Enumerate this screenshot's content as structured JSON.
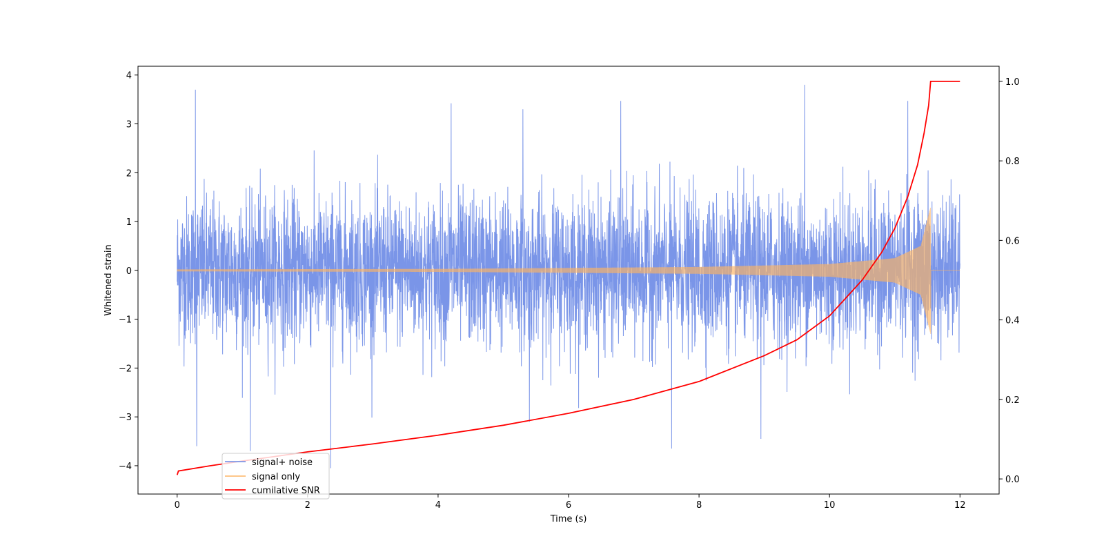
{
  "chart_data": {
    "type": "line",
    "title": "",
    "xlabel": "Time (s)",
    "ylabel": "Whitened strain",
    "y2label": "",
    "xlim": [
      -0.6,
      12.6
    ],
    "ylim": [
      -4.58,
      4.18
    ],
    "y2lim": [
      -0.038,
      1.038
    ],
    "xticks": [
      0,
      2,
      4,
      6,
      8,
      10,
      12
    ],
    "xtick_labels": [
      "0",
      "2",
      "4",
      "6",
      "8",
      "10",
      "12"
    ],
    "yticks": [
      4,
      3,
      2,
      1,
      0,
      -1,
      -2,
      -3,
      -4
    ],
    "ytick_labels": [
      "4",
      "3",
      "2",
      "1",
      "0",
      "−1",
      "−2",
      "−3",
      "−4"
    ],
    "y2ticks": [
      1.0,
      0.8,
      0.6,
      0.4,
      0.2,
      0.0
    ],
    "y2tick_labels": [
      "1.0",
      "0.8",
      "0.6",
      "0.4",
      "0.2",
      "0.0"
    ],
    "grid": false,
    "legend_position": "lower-left",
    "series": [
      {
        "name": "signal+ noise",
        "axis": "left",
        "color": "#6b8ae6",
        "description_range": [
          -4.1,
          3.8
        ],
        "x_range": [
          0,
          12
        ],
        "noise_std": 0.75,
        "spikes": [
          {
            "x": 0.28,
            "y": 3.7
          },
          {
            "x": 0.3,
            "y": -3.6
          },
          {
            "x": 1.12,
            "y": -3.7
          },
          {
            "x": 2.35,
            "y": -4.05
          },
          {
            "x": 9.62,
            "y": 3.8
          },
          {
            "x": 6.8,
            "y": 3.47
          },
          {
            "x": 11.2,
            "y": 3.47
          },
          {
            "x": 7.58,
            "y": -3.65
          },
          {
            "x": 8.95,
            "y": -3.45
          },
          {
            "x": 4.2,
            "y": 3.42
          },
          {
            "x": 5.3,
            "y": 3.3
          },
          {
            "x": 5.4,
            "y": -3.1
          }
        ]
      },
      {
        "name": "signal only",
        "axis": "left",
        "color": "#fdb462",
        "x_range": [
          0,
          12
        ],
        "merger_time": 11.55,
        "amplitude_envelope": [
          {
            "x": 0,
            "a": 0.02
          },
          {
            "x": 4,
            "a": 0.03
          },
          {
            "x": 8,
            "a": 0.07
          },
          {
            "x": 10,
            "a": 0.13
          },
          {
            "x": 11,
            "a": 0.25
          },
          {
            "x": 11.4,
            "a": 0.5
          },
          {
            "x": 11.55,
            "a": 1.3
          }
        ]
      },
      {
        "name": "cumilative SNR",
        "axis": "right",
        "color": "#ff0000",
        "points": [
          {
            "x": 0,
            "y": 0.01
          },
          {
            "x": 0.02,
            "y": 0.02
          },
          {
            "x": 0.5,
            "y": 0.033
          },
          {
            "x": 1,
            "y": 0.045
          },
          {
            "x": 2,
            "y": 0.068
          },
          {
            "x": 3,
            "y": 0.088
          },
          {
            "x": 4,
            "y": 0.11
          },
          {
            "x": 5,
            "y": 0.135
          },
          {
            "x": 6,
            "y": 0.165
          },
          {
            "x": 7,
            "y": 0.2
          },
          {
            "x": 8,
            "y": 0.245
          },
          {
            "x": 9,
            "y": 0.31
          },
          {
            "x": 9.5,
            "y": 0.35
          },
          {
            "x": 10,
            "y": 0.41
          },
          {
            "x": 10.5,
            "y": 0.5
          },
          {
            "x": 10.8,
            "y": 0.57
          },
          {
            "x": 11,
            "y": 0.63
          },
          {
            "x": 11.2,
            "y": 0.71
          },
          {
            "x": 11.35,
            "y": 0.79
          },
          {
            "x": 11.45,
            "y": 0.87
          },
          {
            "x": 11.52,
            "y": 0.94
          },
          {
            "x": 11.55,
            "y": 1.0
          },
          {
            "x": 12,
            "y": 1.0
          }
        ]
      }
    ]
  }
}
